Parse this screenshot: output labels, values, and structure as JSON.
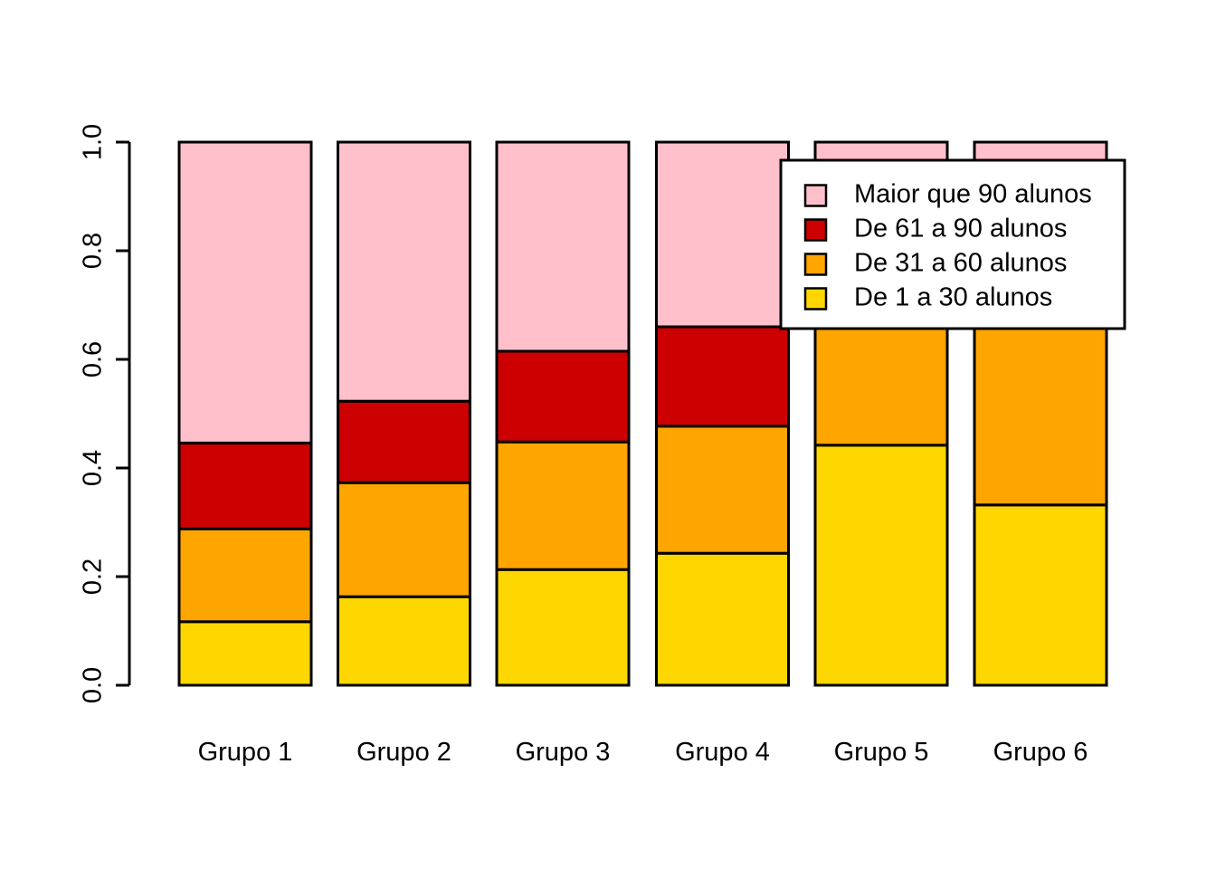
{
  "chart_data": {
    "type": "bar",
    "subtype": "stacked-proportions",
    "title": "",
    "xlabel": "",
    "ylabel": "",
    "categories": [
      "Grupo 1",
      "Grupo 2",
      "Grupo 3",
      "Grupo 4",
      "Grupo 5",
      "Grupo 6"
    ],
    "series": [
      {
        "name": "De 1 a 30 alunos",
        "color": "#FFD700",
        "values": [
          0.117,
          0.163,
          0.213,
          0.243,
          0.442,
          0.332
        ]
      },
      {
        "name": "De 31 a 60 alunos",
        "color": "#FFA500",
        "values": [
          0.171,
          0.21,
          0.235,
          0.234,
          0.278,
          0.418
        ]
      },
      {
        "name": "De 61 a 90 alunos",
        "color": "#CC0000",
        "values": [
          0.158,
          0.15,
          0.167,
          0.183,
          0.12,
          0.1
        ]
      },
      {
        "name": "Maior que 90 alunos",
        "color": "#FFC0CB",
        "values": [
          0.554,
          0.477,
          0.385,
          0.34,
          0.16,
          0.15
        ]
      }
    ],
    "ylim": [
      0,
      1
    ],
    "yticks": [
      0.0,
      0.2,
      0.4,
      0.6,
      0.8,
      1.0
    ],
    "ytick_labels": [
      "0.0",
      "0.2",
      "0.4",
      "0.6",
      "0.8",
      "1.0"
    ],
    "grid": false,
    "legend": {
      "position": "top-right",
      "entries": [
        {
          "label": "Maior que 90 alunos",
          "color": "#FFC0CB"
        },
        {
          "label": "De 61 a 90 alunos",
          "color": "#CC0000"
        },
        {
          "label": "De 31 a 60 alunos",
          "color": "#FFA500"
        },
        {
          "label": "De 1 a 30 alunos",
          "color": "#FFD700"
        }
      ]
    }
  },
  "colors": {
    "background": "#FFFFFF",
    "axis": "#000000",
    "bar_border": "#000000",
    "legend_border": "#000000",
    "legend_background": "#FFFFFF"
  }
}
